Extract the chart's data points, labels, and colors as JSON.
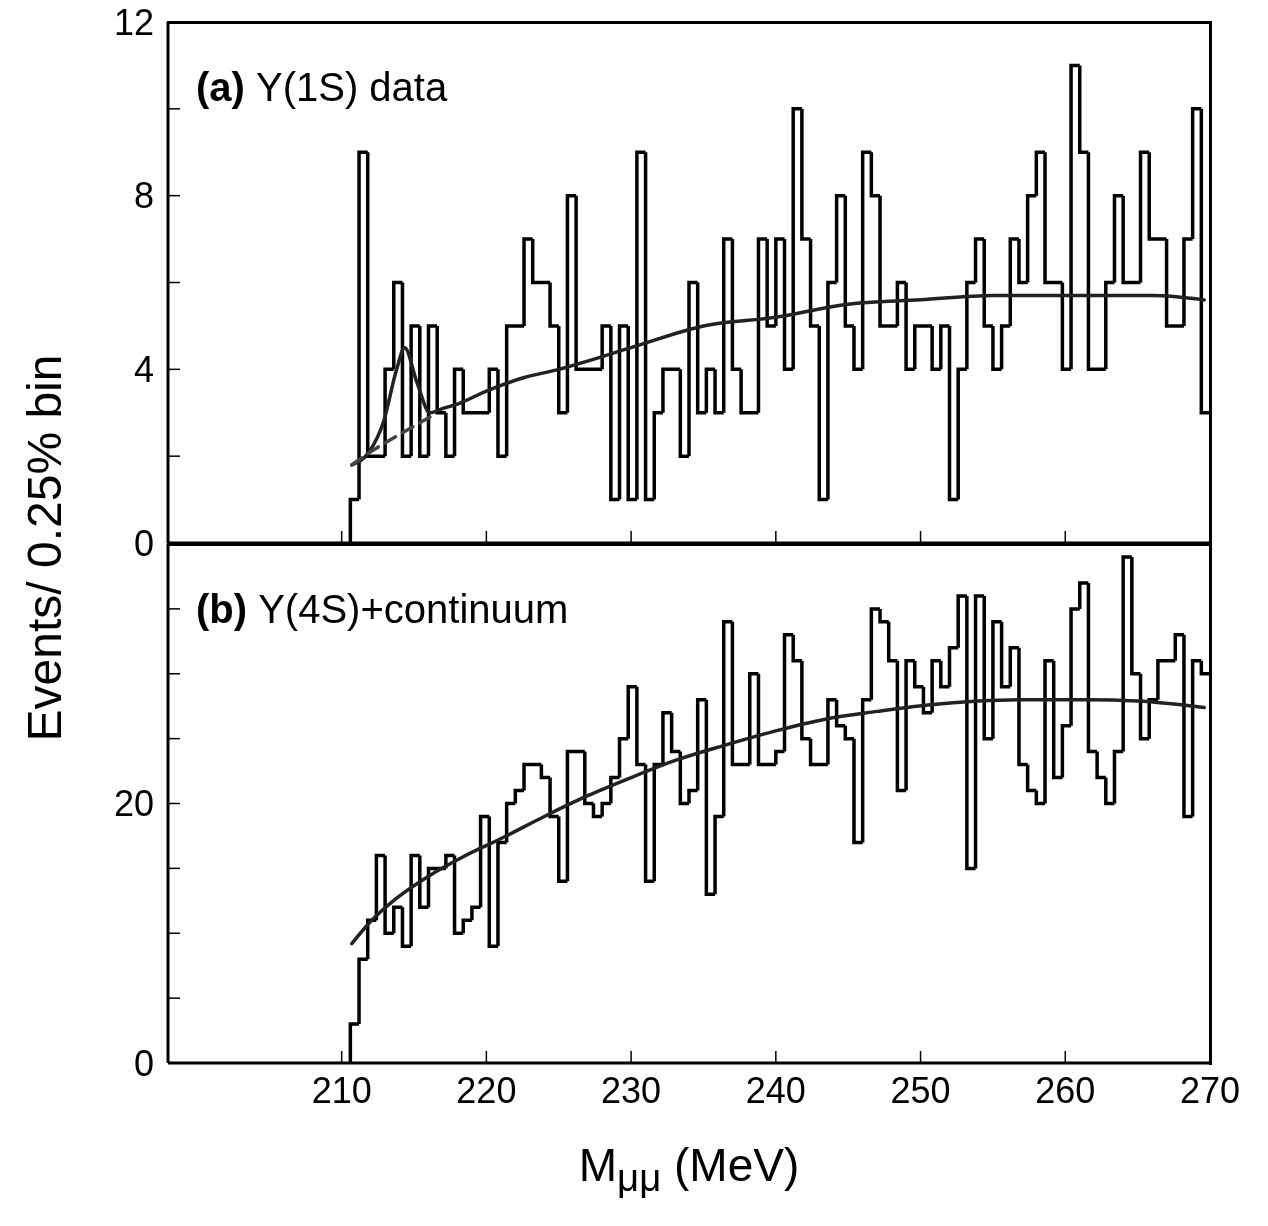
{
  "chart_data": [
    {
      "type": "histogram",
      "ylabel": "Events/ 0.25% bin",
      "annotations": [
        "(a) Υ(1S) data"
      ],
      "bins": [
        210.6,
        211.2,
        211.8,
        213,
        213.6,
        214.2,
        214.8,
        215.4,
        216,
        216.6,
        217.2,
        217.8,
        218.4,
        220.2,
        220.8,
        221.4,
        222.6,
        223.2,
        224.4,
        225,
        225.6,
        226.2,
        228,
        228.6,
        229.2,
        229.8,
        230.4,
        231,
        231.6,
        232.2,
        233.4,
        234,
        234.6,
        235.2,
        235.8,
        236.4,
        237,
        237.6,
        238.8,
        239.4,
        240,
        240.6,
        241.2,
        241.8,
        242.4,
        243,
        243.6,
        244.2,
        244.8,
        245.4,
        246,
        246.6,
        247.2,
        248.4,
        249,
        249.6,
        250.8,
        251.4,
        252,
        252.6,
        253.2,
        253.8,
        254.4,
        255,
        255.6,
        256.2,
        256.8,
        257.4,
        258,
        258.6,
        259.8,
        260.4,
        261,
        261.6,
        262.8,
        263.4,
        264,
        265.2,
        265.8,
        267,
        268.2,
        268.8,
        269.4,
        270
      ],
      "xlim": [
        198,
        270
      ],
      "xticks": [
        210,
        220,
        230,
        240,
        250,
        260,
        270
      ],
      "ylim": [
        0,
        12
      ],
      "yticks": [
        0,
        {
          "value": 2,
          "label": null
        },
        4,
        {
          "value": 6,
          "label": null
        },
        8,
        {
          "value": 10,
          "label": null
        },
        12
      ],
      "tick_labels": "y",
      "series": [
        {
          "color": "#000000",
          "values": [
            1,
            9,
            2,
            4,
            6,
            2,
            5,
            2,
            5,
            3,
            2,
            4,
            3,
            4,
            2,
            5,
            7,
            6,
            5,
            3,
            8,
            4,
            5,
            1,
            5,
            1,
            9,
            1,
            3,
            4,
            2,
            6,
            3,
            4,
            3,
            7,
            4,
            3,
            7,
            5,
            7,
            4,
            10,
            7,
            5,
            1,
            6,
            8,
            5,
            4,
            9,
            8,
            5,
            6,
            4,
            5,
            4,
            5,
            1,
            4,
            6,
            7,
            5,
            4,
            5,
            7,
            6,
            8,
            9,
            6,
            4,
            11,
            9,
            4,
            6,
            8,
            6,
            9,
            7,
            5,
            7,
            10,
            3
          ]
        },
        {
          "type": "line",
          "color": "#222222",
          "line_style": "solid",
          "x": [
            210.7,
            211.9,
            212.9,
            213.8,
            214.35,
            215.2,
            216.1,
            217,
            218,
            220,
            222.5,
            225,
            230,
            235,
            240,
            245,
            250,
            255,
            258,
            262,
            266,
            269.6
          ],
          "values": [
            1.8,
            2.1,
            2.8,
            4.0,
            4.5,
            3.7,
            3.0,
            3.1,
            3.2,
            3.5,
            3.8,
            4.0,
            4.5,
            5.0,
            5.2,
            5.5,
            5.6,
            5.7,
            5.7,
            5.7,
            5.7,
            5.6
          ]
        },
        {
          "type": "line",
          "color": "#444444",
          "line_style": "dashed",
          "x": [
            210.7,
            212,
            214,
            216.1
          ],
          "values": [
            1.8,
            2.1,
            2.5,
            2.9
          ]
        }
      ]
    },
    {
      "type": "histogram",
      "xlabel": "M$_{μμ}$ (MeV)",
      "annotations": [
        "(b) Υ(4S)+continuum"
      ],
      "bins": [
        210.6,
        211.2,
        211.8,
        212.4,
        213,
        213.6,
        214.2,
        214.8,
        215.4,
        216,
        217.2,
        217.8,
        218.4,
        219,
        219.6,
        220.2,
        220.8,
        221.4,
        222,
        222.6,
        223.8,
        224.4,
        225,
        225.6,
        226.8,
        227.4,
        228,
        228.6,
        229.2,
        229.8,
        230.4,
        231,
        231.6,
        232.2,
        232.8,
        233.4,
        234,
        234.6,
        235.2,
        235.8,
        236.4,
        237,
        238.2,
        238.8,
        240,
        240.6,
        241.2,
        241.8,
        242.4,
        243.6,
        244.2,
        244.8,
        245.4,
        246,
        246.6,
        247.2,
        247.8,
        248.4,
        249,
        249.6,
        250.2,
        250.8,
        251.4,
        252,
        252.6,
        253.2,
        253.8,
        254.4,
        255,
        255.6,
        256.2,
        256.8,
        257.4,
        258,
        258.6,
        259.2,
        259.8,
        260.4,
        261,
        261.6,
        262.2,
        262.8,
        263.4,
        264,
        264.6,
        265.2,
        265.8,
        266.4,
        267.6,
        268.2,
        268.8,
        269.4,
        270
      ],
      "xlim": [
        198,
        270
      ],
      "xticks": [
        210,
        220,
        230,
        240,
        250,
        260,
        270
      ],
      "ylim": [
        0,
        40
      ],
      "yticks": [
        0,
        {
          "value": 5,
          "label": null
        },
        {
          "value": 10,
          "label": null
        },
        {
          "value": 15,
          "label": null
        },
        20,
        {
          "value": 25,
          "label": null
        },
        {
          "value": 30,
          "label": null
        },
        {
          "value": 35,
          "label": null
        },
        {
          "value": 40,
          "label": null
        }
      ],
      "series": [
        {
          "color": "#000000",
          "values": [
            3,
            8,
            11,
            16,
            10,
            12,
            9,
            16,
            12,
            15,
            16,
            10,
            11,
            12,
            19,
            9,
            17,
            20,
            21,
            23,
            22,
            19,
            14,
            24,
            20,
            19,
            20,
            22,
            25,
            29,
            23,
            14,
            23,
            27,
            24,
            20,
            21,
            28,
            13,
            19,
            34,
            23,
            30,
            23,
            24,
            33,
            31,
            25,
            23,
            28,
            26,
            25,
            17,
            28,
            35,
            34,
            31,
            21,
            31,
            29,
            27,
            31,
            29,
            32,
            36,
            15,
            36,
            25,
            34,
            29,
            32,
            23,
            21,
            20,
            31,
            22,
            26,
            35,
            37,
            24,
            22,
            20,
            24,
            39,
            30,
            25,
            28,
            31,
            33,
            19,
            31,
            30
          ]
        },
        {
          "type": "line",
          "color": "#222222",
          "line_style": "solid",
          "x": [
            210.7,
            212,
            213.8,
            216,
            218.4,
            221.2,
            224,
            227,
            230,
            233,
            236.5,
            240,
            243.4,
            247,
            250.5,
            254,
            257,
            261.5,
            265,
            269.6
          ],
          "values": [
            9.2,
            10.9,
            12.7,
            14.4,
            15.9,
            17.4,
            19.0,
            20.6,
            22.0,
            23.3,
            24.5,
            25.6,
            26.5,
            27.1,
            27.6,
            27.9,
            28.0,
            28.0,
            27.9,
            27.4
          ]
        }
      ]
    }
  ]
}
